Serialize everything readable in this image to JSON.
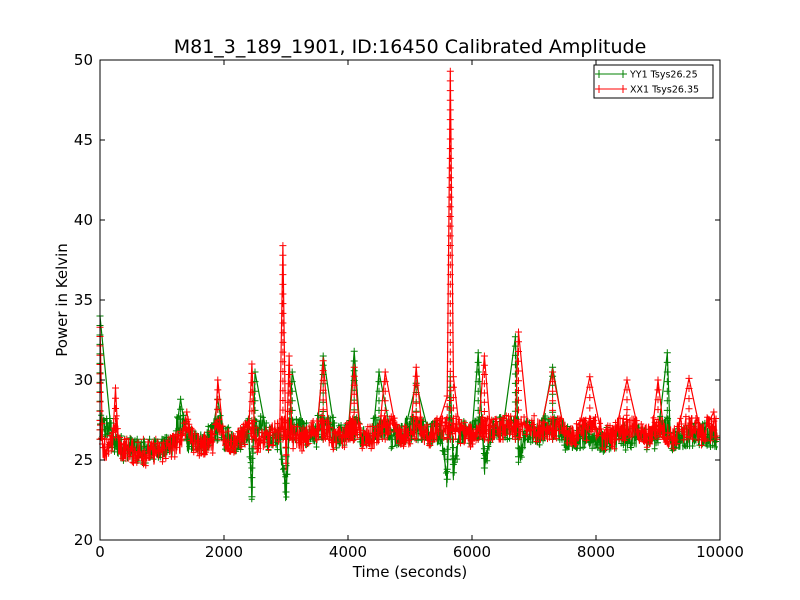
{
  "chart_data": {
    "type": "line",
    "title": "M81_3_189_1901, ID:16450 Calibrated Amplitude",
    "xlabel": "Time (seconds)",
    "ylabel": "Power in Kelvin",
    "xlim": [
      0,
      10000
    ],
    "ylim": [
      20,
      50
    ],
    "xticks": [
      0,
      2000,
      4000,
      6000,
      8000,
      10000
    ],
    "yticks": [
      20,
      25,
      30,
      35,
      40,
      45,
      50
    ],
    "xtick_labels": [
      "0",
      "2000",
      "4000",
      "6000",
      "8000",
      "10000"
    ],
    "ytick_labels": [
      "20",
      "25",
      "30",
      "35",
      "40",
      "45",
      "50"
    ],
    "grid": false,
    "legend_position": "top-right",
    "marker": "plus",
    "series": [
      {
        "name": "YY1 Tsys26.25",
        "color": "#008000",
        "x": [
          0,
          200,
          400,
          600,
          800,
          1000,
          1200,
          1300,
          1400,
          1600,
          1800,
          1900,
          2000,
          2200,
          2400,
          2450,
          2500,
          2700,
          2900,
          3000,
          3100,
          3300,
          3500,
          3600,
          3800,
          4000,
          4100,
          4200,
          4400,
          4500,
          4700,
          4900,
          5100,
          5300,
          5500,
          5600,
          5650,
          5700,
          5800,
          6000,
          6100,
          6200,
          6300,
          6500,
          6700,
          6750,
          6900,
          7100,
          7300,
          7500,
          7700,
          7900,
          8100,
          8300,
          8500,
          8700,
          8900,
          9000,
          9150,
          9200,
          9400,
          9600,
          9800,
          9950
        ],
        "y": [
          34.0,
          26.0,
          25.7,
          25.6,
          25.6,
          25.8,
          26.0,
          28.8,
          26.2,
          26.1,
          26.4,
          28.8,
          26.3,
          26.2,
          26.9,
          22.7,
          30.5,
          26.4,
          26.4,
          23.0,
          30.5,
          26.5,
          26.6,
          31.5,
          26.4,
          26.6,
          31.8,
          26.6,
          26.5,
          30.5,
          26.5,
          26.6,
          29.8,
          26.7,
          26.6,
          23.8,
          30.2,
          24.2,
          26.8,
          26.7,
          31.7,
          24.5,
          26.9,
          27.0,
          32.7,
          25.2,
          27.0,
          26.5,
          30.8,
          26.4,
          26.3,
          26.4,
          26.2,
          26.3,
          26.4,
          26.5,
          26.4,
          26.6,
          31.7,
          26.3,
          26.4,
          26.5,
          26.6,
          26.4
        ]
      },
      {
        "name": "XX1 Tsys26.35",
        "color": "#ff0000",
        "x": [
          0,
          40,
          100,
          200,
          250,
          300,
          500,
          700,
          900,
          1100,
          1300,
          1400,
          1500,
          1700,
          1850,
          1900,
          2000,
          2200,
          2400,
          2450,
          2500,
          2700,
          2900,
          2950,
          3000,
          3050,
          3100,
          3300,
          3500,
          3600,
          3700,
          3900,
          4000,
          4100,
          4200,
          4400,
          4500,
          4600,
          4800,
          5000,
          5100,
          5200,
          5400,
          5600,
          5650,
          5700,
          5800,
          6000,
          6100,
          6200,
          6300,
          6500,
          6700,
          6750,
          6900,
          7100,
          7300,
          7500,
          7700,
          7900,
          8100,
          8300,
          8500,
          8700,
          8900,
          9000,
          9100,
          9300,
          9500,
          9700,
          9900,
          9950
        ],
        "y": [
          33.3,
          26.0,
          25.5,
          26.0,
          29.5,
          25.7,
          25.6,
          25.4,
          25.5,
          25.7,
          26.2,
          28.0,
          26.0,
          26.0,
          26.3,
          30.0,
          26.2,
          26.1,
          27.0,
          31.0,
          26.2,
          26.3,
          27.0,
          38.4,
          24.8,
          31.5,
          26.4,
          26.3,
          27.0,
          31.2,
          26.3,
          26.4,
          26.6,
          30.8,
          26.4,
          26.3,
          26.6,
          30.5,
          26.4,
          26.5,
          30.8,
          26.6,
          26.5,
          29.0,
          49.3,
          30.2,
          26.8,
          26.5,
          26.9,
          31.5,
          26.8,
          26.9,
          27.5,
          33.0,
          27.2,
          26.8,
          30.5,
          26.6,
          26.5,
          30.2,
          26.4,
          26.5,
          30.0,
          26.6,
          26.5,
          30.0,
          26.6,
          26.4,
          30.1,
          26.5,
          28.0,
          26.5
        ]
      }
    ]
  }
}
